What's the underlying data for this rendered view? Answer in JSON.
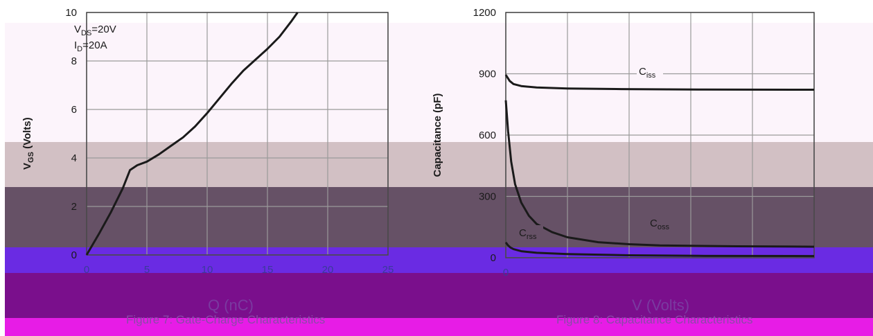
{
  "bands": {
    "colors": [
      "#fcf4fb",
      "#d2c0c4",
      "#665166",
      "#6a2be3",
      "#7a0f8c",
      "#e71ce6"
    ]
  },
  "chart_data": [
    {
      "type": "line",
      "title": "",
      "ylabel_main": "V",
      "ylabel_sub": "GS",
      "ylabel_rest": " (Volts)",
      "xlabel": "",
      "xlim": [
        0,
        25
      ],
      "ylim": [
        0,
        10
      ],
      "xticks": [
        "0",
        "5",
        "10",
        "15",
        "20",
        "25"
      ],
      "yticks": [
        "0",
        "2",
        "4",
        "6",
        "8",
        "10"
      ],
      "annotations": [
        {
          "main": "V",
          "sub": "DS",
          "rest": "=20V"
        },
        {
          "main": "I",
          "sub": "D",
          "rest": "=20A"
        }
      ],
      "series": [
        {
          "color": "#1a1a1a",
          "x": [
            0,
            1,
            2,
            3,
            3.6,
            4.2,
            5,
            6,
            7,
            8,
            9,
            10,
            11,
            12,
            13,
            14,
            15,
            16,
            17,
            17.5
          ],
          "y": [
            0,
            0.85,
            1.75,
            2.75,
            3.5,
            3.7,
            3.85,
            4.15,
            4.5,
            4.85,
            5.3,
            5.85,
            6.45,
            7.05,
            7.6,
            8.05,
            8.5,
            9.0,
            9.65,
            10.0
          ]
        }
      ],
      "caption": "Figure 7: Gate-Charge Characteristics",
      "unit_fragment": "Q (nC)"
    },
    {
      "type": "line",
      "title": "",
      "ylabel": "Capacitance (pF)",
      "xlabel": "",
      "xlim": [
        0,
        40
      ],
      "ylim": [
        0,
        1200
      ],
      "xticks": [
        "0",
        "",
        "",
        "",
        "",
        ""
      ],
      "yticks": [
        "0",
        "300",
        "600",
        "900",
        "1200"
      ],
      "series": [
        {
          "name": "C",
          "sub": "iss",
          "color": "#1a1a1a",
          "x": [
            0,
            0.5,
            1,
            2,
            4,
            8,
            15,
            25,
            40
          ],
          "y": [
            895,
            865,
            850,
            840,
            833,
            828,
            825,
            823,
            822
          ]
        },
        {
          "name": "C",
          "sub": "oss",
          "color": "#1a1a1a",
          "x": [
            0,
            0.3,
            0.7,
            1.2,
            2,
            3,
            4,
            6,
            8,
            12,
            16,
            20,
            30,
            40
          ],
          "y": [
            770,
            620,
            470,
            360,
            270,
            205,
            165,
            125,
            100,
            76,
            66,
            60,
            56,
            54
          ]
        },
        {
          "name": "C",
          "sub": "rss",
          "color": "#1a1a1a",
          "x": [
            0,
            0.3,
            0.6,
            1,
            2,
            4,
            8,
            16,
            25,
            40
          ],
          "y": [
            75,
            60,
            50,
            42,
            32,
            24,
            18,
            12,
            9,
            8
          ]
        }
      ],
      "caption": "Figure 8: Capacitance Characteristics",
      "unit_fragment": "V (Volts)"
    }
  ]
}
